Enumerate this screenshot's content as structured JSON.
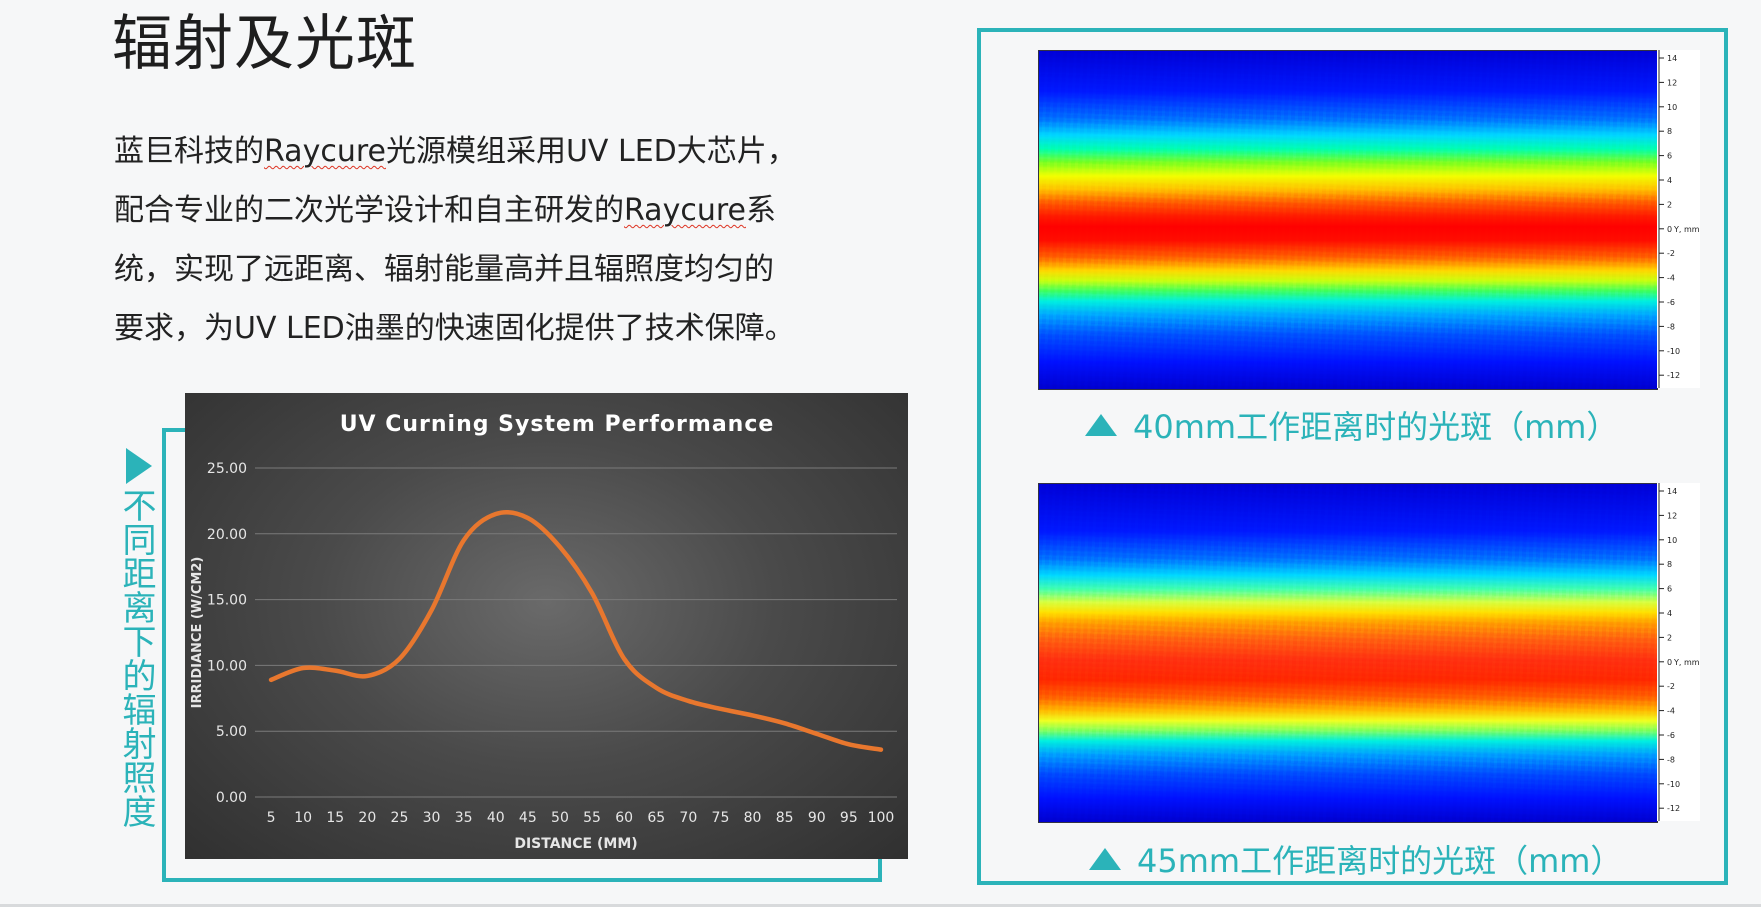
{
  "slide": {
    "title": "辐射及光斑",
    "paragraph_lines": [
      {
        "pre": "蓝巨科技的",
        "mark": "Raycure",
        "post": "光源模组采用UV LED大芯片，"
      },
      {
        "pre": "配合专业的二次光学设计和自主研发的",
        "mark": "Raycure",
        "post": "系"
      },
      {
        "pre": "统，实现了远距离、辐射能量高并且辐照度均匀的",
        "mark": "",
        "post": ""
      },
      {
        "pre": "要求，为UV LED油墨的快速固化提供了技术保障。",
        "mark": "",
        "post": ""
      }
    ],
    "vertical_caption": "不同距离下的辐射照度",
    "heatmap_captions": [
      "40mm工作距离时的光斑（mm）",
      "45mm工作距离时的光斑（mm）"
    ],
    "heatmap_axis_label": "Y, mm",
    "heatmap_axis_ticks": [
      "14",
      "12",
      "10",
      "8",
      "6",
      "4",
      "2",
      "0",
      "-2",
      "-4",
      "-6",
      "-8",
      "-10",
      "-12"
    ]
  },
  "colors": {
    "accent": "#2bb3b9",
    "line": "#e8772e",
    "chart_text": "#e6e6e6",
    "grid": "#7a7a7a"
  },
  "chart_data": {
    "type": "line",
    "title": "UV Curning System Performance",
    "xlabel": "DISTANCE (MM)",
    "ylabel": "IRRIDIANCE (W/CM2)",
    "x": [
      5,
      10,
      15,
      20,
      25,
      30,
      35,
      40,
      45,
      50,
      55,
      60,
      65,
      70,
      75,
      80,
      85,
      90,
      95,
      100
    ],
    "y_tick_labels": [
      "0.00",
      "5.00",
      "10.00",
      "15.00",
      "20.00",
      "25.00"
    ],
    "ylim": [
      0,
      25
    ],
    "grid": true,
    "legend": "none",
    "series": [
      {
        "values": [
          8.9,
          9.8,
          9.6,
          9.2,
          10.5,
          14.2,
          19.5,
          21.5,
          21.2,
          19.0,
          15.5,
          10.5,
          8.3,
          7.3,
          6.7,
          6.2,
          5.6,
          4.8,
          4.0,
          3.6
        ]
      }
    ]
  }
}
